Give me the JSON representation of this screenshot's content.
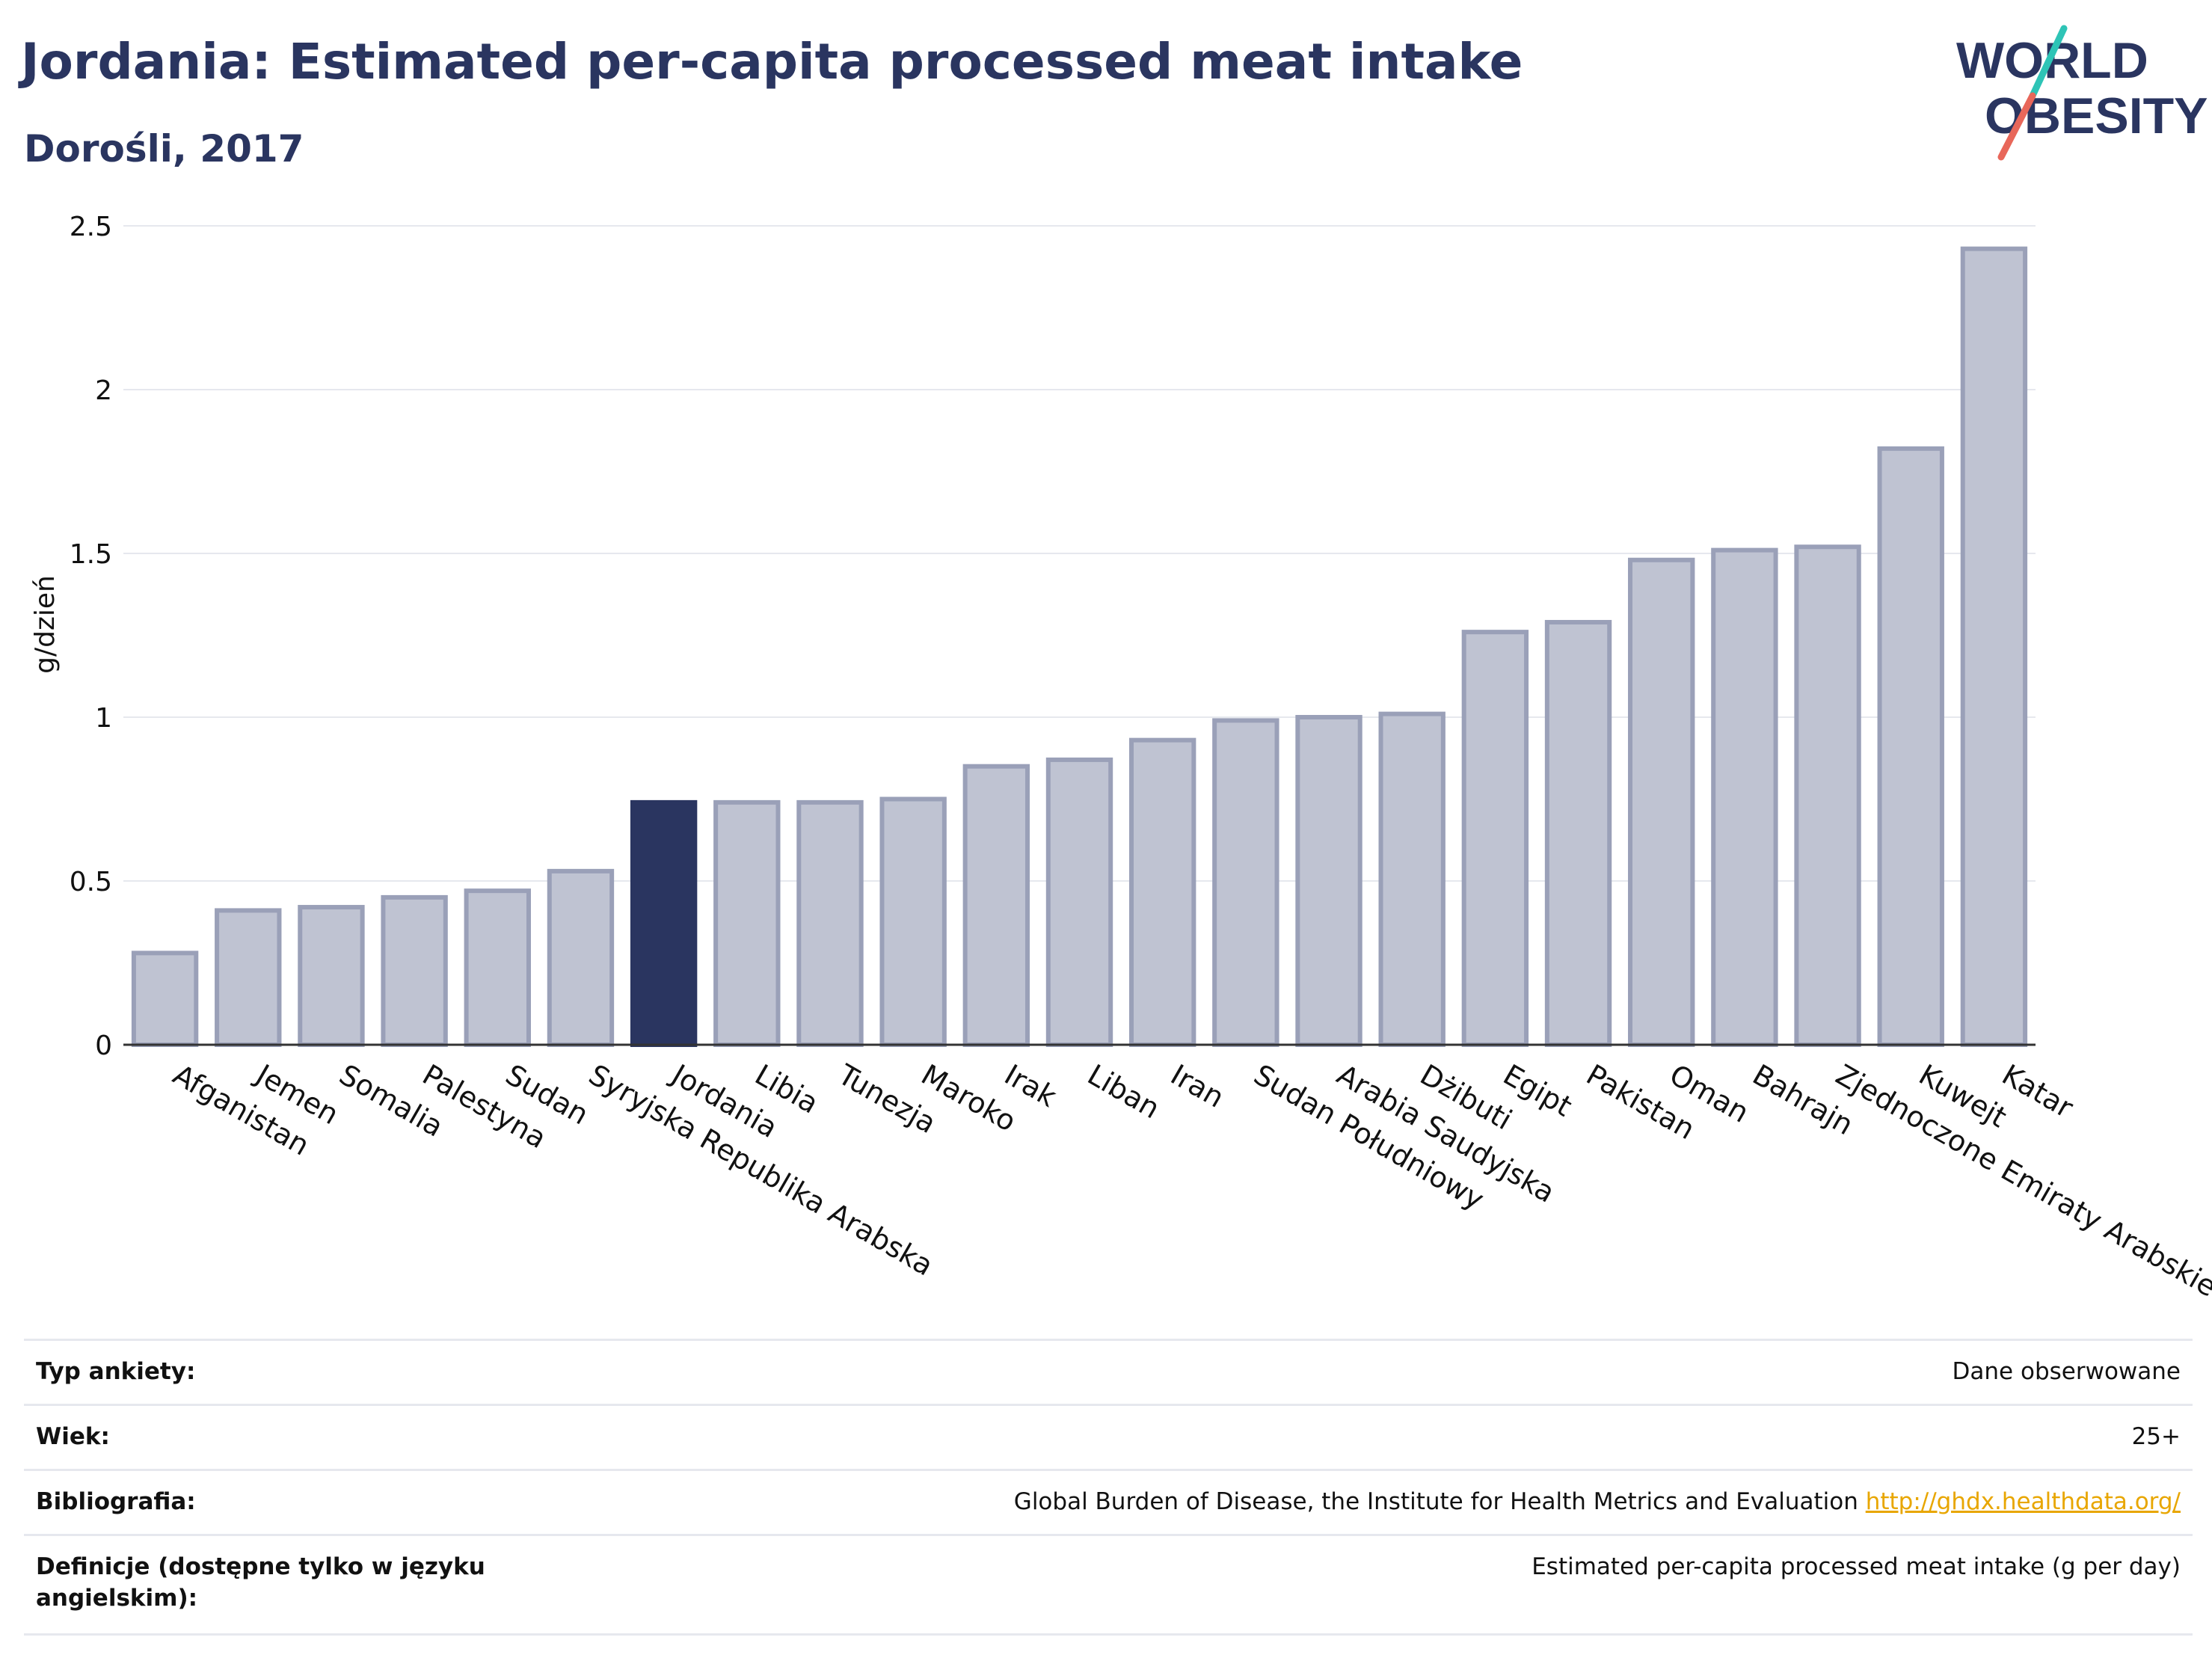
{
  "header": {
    "title": "Jordania: Estimated per-capita processed meat intake",
    "subtitle": "Dorośli, 2017"
  },
  "logo": {
    "line1": "WORLD",
    "line2": "OBESITY",
    "accent1": "#2ec4b6",
    "accent2": "#e8675a"
  },
  "colors": {
    "bar": "#bfc3d2",
    "bar_stroke": "#9aa0b8",
    "highlight": "#2a3560",
    "grid": "#e6e8ee"
  },
  "chart_data": {
    "type": "bar",
    "ylabel": "g/dzień",
    "ylim": [
      0,
      2.5
    ],
    "yticks": [
      "0",
      "0.5",
      "1",
      "1.5",
      "2",
      "2.5"
    ],
    "highlight": "Jordania",
    "categories": [
      "Afganistan",
      "Jemen",
      "Somalia",
      "Palestyna",
      "Sudan",
      "Syryjska Republika Arabska",
      "Jordania",
      "Libia",
      "Tunezja",
      "Maroko",
      "Irak",
      "Liban",
      "Iran",
      "Sudan Południowy",
      "Arabia Saudyjska",
      "Dżibuti",
      "Egipt",
      "Pakistan",
      "Oman",
      "Bahrajn",
      "Zjednoczone Emiraty Arabskie",
      "Kuwejt",
      "Katar"
    ],
    "values": [
      0.28,
      0.41,
      0.42,
      0.45,
      0.47,
      0.53,
      0.74,
      0.74,
      0.74,
      0.75,
      0.85,
      0.87,
      0.93,
      0.99,
      1.0,
      1.01,
      1.26,
      1.29,
      1.48,
      1.51,
      1.52,
      1.82,
      2.43
    ]
  },
  "info": [
    {
      "label": "Typ ankiety:",
      "value": "Dane obserwowane"
    },
    {
      "label": "Wiek:",
      "value": "25+"
    },
    {
      "label": "Bibliografia:",
      "value": "Global Burden of Disease, the Institute for Health Metrics and Evaluation",
      "link": "http://ghdx.healthdata.org/"
    },
    {
      "label": "Definicje (dostępne tylko w języku angielskim):",
      "value": "Estimated per-capita processed meat intake (g per day)"
    }
  ]
}
